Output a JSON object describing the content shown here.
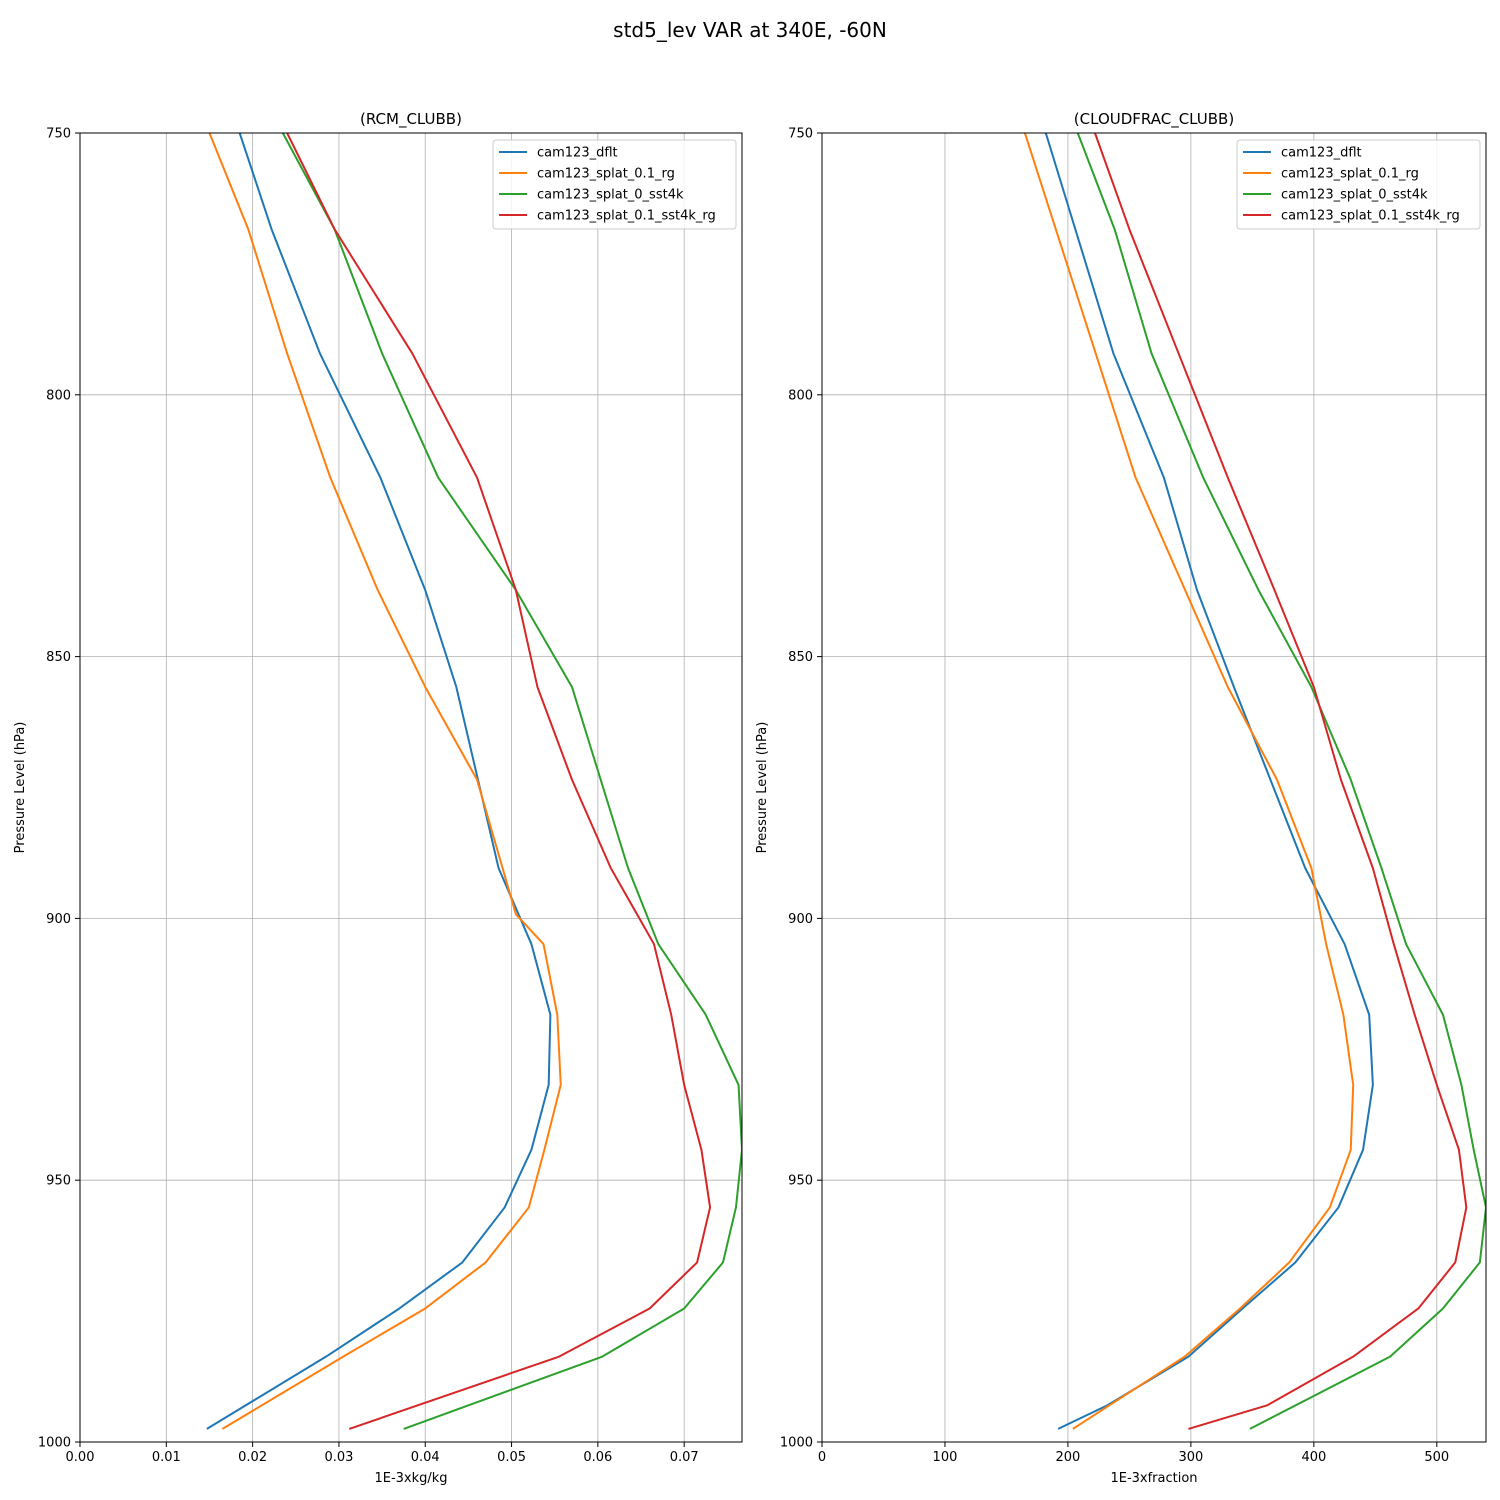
{
  "figure": {
    "suptitle": "std5_lev VAR at 340E, -60N"
  },
  "legend_labels": [
    "cam123_dflt",
    "cam123_splat_0.1_rg",
    "cam123_splat_0_sst4k",
    "cam123_splat_0.1_sst4k_rg"
  ],
  "colors": [
    "#1f77b4",
    "#ff7f0e",
    "#2ca02c",
    "#d62728"
  ],
  "chart_data": [
    {
      "type": "line",
      "title": "(RCM_CLUBB)",
      "xlabel": "1E-3xkg/kg",
      "ylabel": "Pressure Level (hPa)",
      "xlim": [
        0,
        0.0767
      ],
      "ylim": [
        1000,
        750
      ],
      "xticks": [
        0.0,
        0.01,
        0.02,
        0.03,
        0.04,
        0.05,
        0.06,
        0.07
      ],
      "xtick_labels": [
        "0.00",
        "0.01",
        "0.02",
        "0.03",
        "0.04",
        "0.05",
        "0.06",
        "0.07"
      ],
      "yticks": [
        750,
        800,
        850,
        900,
        950,
        1000
      ],
      "ytick_labels": [
        "750",
        "800",
        "850",
        "900",
        "950",
        "1000"
      ],
      "grid": true,
      "legend_position": "upper right",
      "series": [
        {
          "name": "cam123_dflt",
          "color": "#1f77b4",
          "y": [
            750,
            768.4,
            792.1,
            815.8,
            837.3,
            855.8,
            890.4,
            904.9,
            918.4,
            931.8,
            944.2,
            955.2,
            965.7,
            974.5,
            983.7,
            997.5
          ],
          "x": [
            0.0185,
            0.0222,
            0.0278,
            0.0348,
            0.04,
            0.0436,
            0.0485,
            0.0523,
            0.0545,
            0.0543,
            0.0523,
            0.0492,
            0.0443,
            0.037,
            0.0285,
            0.0147
          ]
        },
        {
          "name": "cam123_splat_0.1_rg",
          "color": "#ff7f0e",
          "y": [
            750,
            768.4,
            792.1,
            815.8,
            837.3,
            855.8,
            873.5,
            899.2,
            904.9,
            918.4,
            931.8,
            944.2,
            955.2,
            965.7,
            974.5,
            983.7,
            997.5
          ],
          "x": [
            0.015,
            0.0195,
            0.024,
            0.029,
            0.0345,
            0.04,
            0.046,
            0.0505,
            0.0537,
            0.0553,
            0.0557,
            0.0538,
            0.052,
            0.047,
            0.04,
            0.0305,
            0.0165
          ]
        },
        {
          "name": "cam123_splat_0_sst4k",
          "color": "#2ca02c",
          "y": [
            750,
            768.4,
            792.1,
            815.8,
            837.3,
            855.8,
            890.4,
            904.9,
            918.4,
            931.8,
            944.2,
            955.2,
            965.7,
            974.5,
            983.7,
            997.5
          ],
          "x": [
            0.0235,
            0.0295,
            0.035,
            0.0415,
            0.0505,
            0.057,
            0.0635,
            0.067,
            0.0725,
            0.0763,
            0.0767,
            0.076,
            0.0745,
            0.07,
            0.0605,
            0.0375
          ]
        },
        {
          "name": "cam123_splat_0.1_sst4k_rg",
          "color": "#d62728",
          "y": [
            750,
            768.4,
            792.1,
            815.8,
            837.3,
            855.8,
            873.5,
            890.4,
            904.9,
            918.4,
            931.8,
            944.2,
            955.2,
            965.7,
            974.5,
            983.7,
            997.5
          ],
          "x": [
            0.024,
            0.0295,
            0.0385,
            0.046,
            0.0505,
            0.053,
            0.057,
            0.0615,
            0.0665,
            0.0685,
            0.07,
            0.072,
            0.073,
            0.0715,
            0.066,
            0.0555,
            0.0312
          ]
        }
      ]
    },
    {
      "type": "line",
      "title": "(CLOUDFRAC_CLUBB)",
      "xlabel": "1E-3xfraction",
      "ylabel": "Pressure Level (hPa)",
      "xlim": [
        0,
        540
      ],
      "ylim": [
        1000,
        750
      ],
      "xticks": [
        0,
        100,
        200,
        300,
        400,
        500
      ],
      "xtick_labels": [
        "0",
        "100",
        "200",
        "300",
        "400",
        "500"
      ],
      "yticks": [
        750,
        800,
        850,
        900,
        950,
        1000
      ],
      "ytick_labels": [
        "750",
        "800",
        "850",
        "900",
        "950",
        "1000"
      ],
      "grid": true,
      "legend_position": "upper right",
      "series": [
        {
          "name": "cam123_dflt",
          "color": "#1f77b4",
          "y": [
            750,
            792.1,
            815.8,
            837.3,
            855.8,
            890.4,
            904.9,
            918.4,
            931.8,
            944.2,
            955.2,
            965.7,
            974.5,
            983.7,
            993.0,
            997.5
          ],
          "x": [
            182,
            237,
            278,
            305,
            335,
            393,
            425,
            445,
            448,
            440,
            420,
            385,
            342,
            298,
            232,
            192
          ]
        },
        {
          "name": "cam123_splat_0.1_rg",
          "color": "#ff7f0e",
          "y": [
            750,
            815.8,
            855.8,
            873.5,
            890.4,
            904.9,
            918.4,
            931.8,
            944.2,
            955.2,
            965.7,
            974.5,
            983.7,
            997.5
          ],
          "x": [
            165,
            255,
            330,
            370,
            398,
            410,
            424,
            432,
            430,
            413,
            380,
            340,
            295,
            204
          ]
        },
        {
          "name": "cam123_splat_0_sst4k",
          "color": "#2ca02c",
          "y": [
            750,
            768.4,
            792.1,
            815.8,
            837.3,
            855.8,
            873.5,
            890.4,
            904.9,
            918.4,
            931.8,
            944.2,
            955.2,
            965.7,
            974.5,
            983.7,
            997.5
          ],
          "x": [
            208,
            238,
            268,
            310,
            355,
            398,
            430,
            455,
            475,
            505,
            520,
            530,
            540,
            535,
            505,
            462,
            348
          ]
        },
        {
          "name": "cam123_splat_0.1_sst4k_rg",
          "color": "#d62728",
          "y": [
            750,
            768.4,
            792.1,
            815.8,
            837.3,
            855.8,
            873.5,
            890.4,
            904.9,
            918.4,
            931.8,
            944.2,
            955.2,
            965.7,
            974.5,
            983.7,
            993.0,
            997.5
          ],
          "x": [
            222,
            250,
            290,
            330,
            368,
            400,
            422,
            448,
            465,
            482,
            500,
            518,
            524,
            515,
            485,
            432,
            362,
            298
          ]
        }
      ]
    }
  ]
}
